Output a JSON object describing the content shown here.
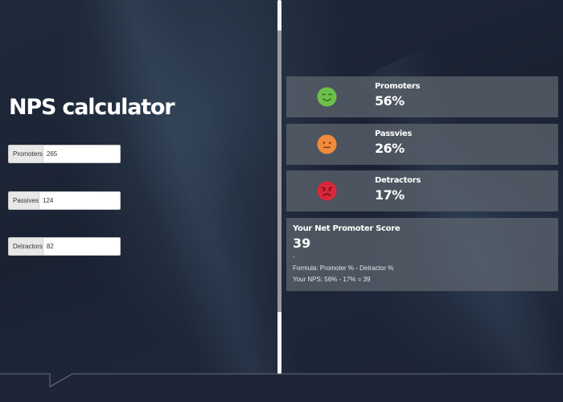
{
  "calculator": {
    "title": "NPS calculator",
    "fields": [
      {
        "label": "Promoters",
        "value": "265"
      },
      {
        "label": "Passives",
        "value": "124"
      },
      {
        "label": "Detractors",
        "value": "82"
      }
    ]
  },
  "results": {
    "cards": [
      {
        "label": "Promoters",
        "percent": "56%",
        "icon": "smile-emoji-icon",
        "color": "#6cc04a"
      },
      {
        "label": "Passvies",
        "percent": "26%",
        "icon": "neutral-emoji-icon",
        "color": "#f08a3c"
      },
      {
        "label": "Detractors",
        "percent": "17%",
        "icon": "angry-emoji-icon",
        "color": "#d8283a"
      }
    ],
    "score": {
      "title": "Your Net Promoter Score",
      "value": "39",
      "separator": "-",
      "formula": "Formula: Promoter % - Detractor %",
      "calculation": "Your NPS: 56% - 17% = 39"
    }
  },
  "colors": {
    "background": "#1c2434",
    "card": "#60667a",
    "promoter": "#6cc04a",
    "passive": "#f08a3c",
    "detractor": "#d8283a"
  }
}
